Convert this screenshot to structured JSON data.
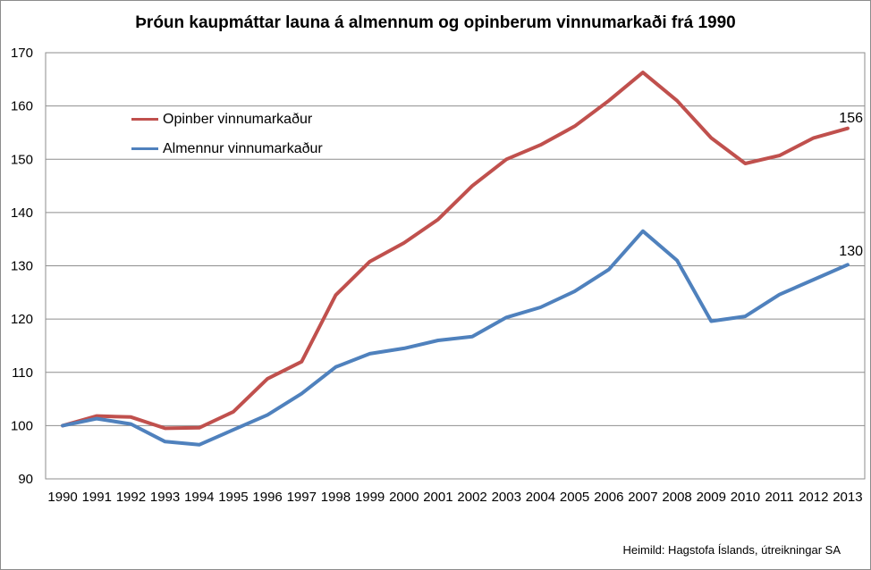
{
  "chart_data": {
    "type": "line",
    "title": "Þróun kaupmáttar launa á almennum og opinberum vinnumarkaði frá 1990",
    "x": [
      1990,
      1991,
      1992,
      1993,
      1994,
      1995,
      1996,
      1997,
      1998,
      1999,
      2000,
      2001,
      2002,
      2003,
      2004,
      2005,
      2006,
      2007,
      2008,
      2009,
      2010,
      2011,
      2012,
      2013
    ],
    "ylim": [
      90,
      170
    ],
    "yticks": [
      90,
      100,
      110,
      120,
      130,
      140,
      150,
      160,
      170
    ],
    "grid": "horizontal",
    "legend_position": "inside-top-left",
    "series": [
      {
        "name": "Opinber vinnumarkaður",
        "color": "#C0504D",
        "end_label": "156",
        "values": [
          100,
          101.8,
          101.6,
          99.5,
          99.6,
          102.6,
          108.8,
          112,
          124.5,
          130.8,
          134.3,
          138.7,
          145,
          150,
          152.7,
          156.2,
          161,
          166.3,
          161,
          154,
          149.2,
          150.7,
          154,
          155.8
        ]
      },
      {
        "name": "Almennur vinnumarkaður",
        "color": "#4F81BD",
        "end_label": "130",
        "values": [
          100,
          101.3,
          100.3,
          97,
          96.4,
          99.2,
          102,
          106,
          111,
          113.5,
          114.5,
          116,
          116.7,
          120.3,
          122.2,
          125.2,
          129.3,
          136.5,
          131,
          119.6,
          120.5,
          124.6,
          127.4,
          130.2
        ]
      }
    ],
    "source": "Heimild: Hagstofa Íslands, útreikningar SA",
    "gridline_color": "#8e8e8e"
  }
}
